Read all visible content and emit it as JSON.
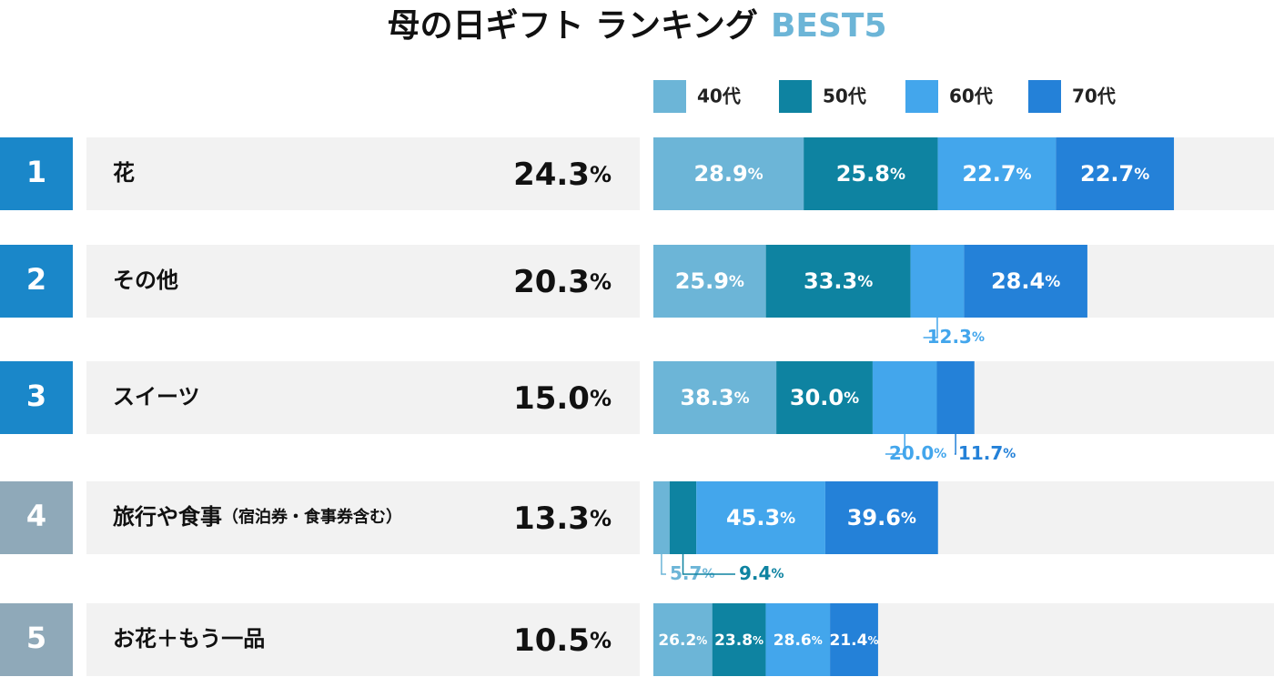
{
  "chart_data": {
    "type": "bar",
    "title": "母の日ギフト ランキング",
    "title_suffix": "BEST5",
    "unit": "%",
    "ranks": [
      1,
      2,
      3,
      4,
      5
    ],
    "rank_colors": [
      "#1a87c9",
      "#1a87c9",
      "#1a87c9",
      "#8fa9b9",
      "#8fa9b9"
    ],
    "categories": [
      "花",
      "その他",
      "スイーツ",
      "旅行や食事",
      "お花＋もう一品"
    ],
    "category_notes": [
      null,
      null,
      null,
      "（宿泊券・食事券含む）",
      null
    ],
    "values": [
      24.3,
      20.3,
      15.0,
      13.3,
      10.5
    ],
    "value_labels": [
      "24.3",
      "20.3",
      "15.0",
      "13.3",
      "10.5"
    ],
    "xlim": [
      0,
      29
    ],
    "series": [
      {
        "name": "40代",
        "color": "#6cb5d7",
        "values": [
          28.9,
          25.9,
          38.3,
          5.7,
          26.2
        ],
        "value_labels": [
          "28.9",
          "25.9",
          "38.3",
          "5.7",
          "26.2"
        ]
      },
      {
        "name": "50代",
        "color": "#0e83a1",
        "values": [
          25.8,
          33.3,
          30.0,
          9.4,
          23.8
        ],
        "value_labels": [
          "25.8",
          "33.3",
          "30.0",
          "9.4",
          "23.8"
        ]
      },
      {
        "name": "60代",
        "color": "#43a6ec",
        "values": [
          22.7,
          12.3,
          20.0,
          45.3,
          28.6
        ],
        "value_labels": [
          "22.7",
          "12.3",
          "20.0",
          "45.3",
          "28.6"
        ]
      },
      {
        "name": "70代",
        "color": "#2481d8",
        "values": [
          22.7,
          28.4,
          11.7,
          39.6,
          21.4
        ],
        "value_labels": [
          "22.7",
          "28.4",
          "11.7",
          "39.6",
          "21.4"
        ]
      }
    ]
  }
}
